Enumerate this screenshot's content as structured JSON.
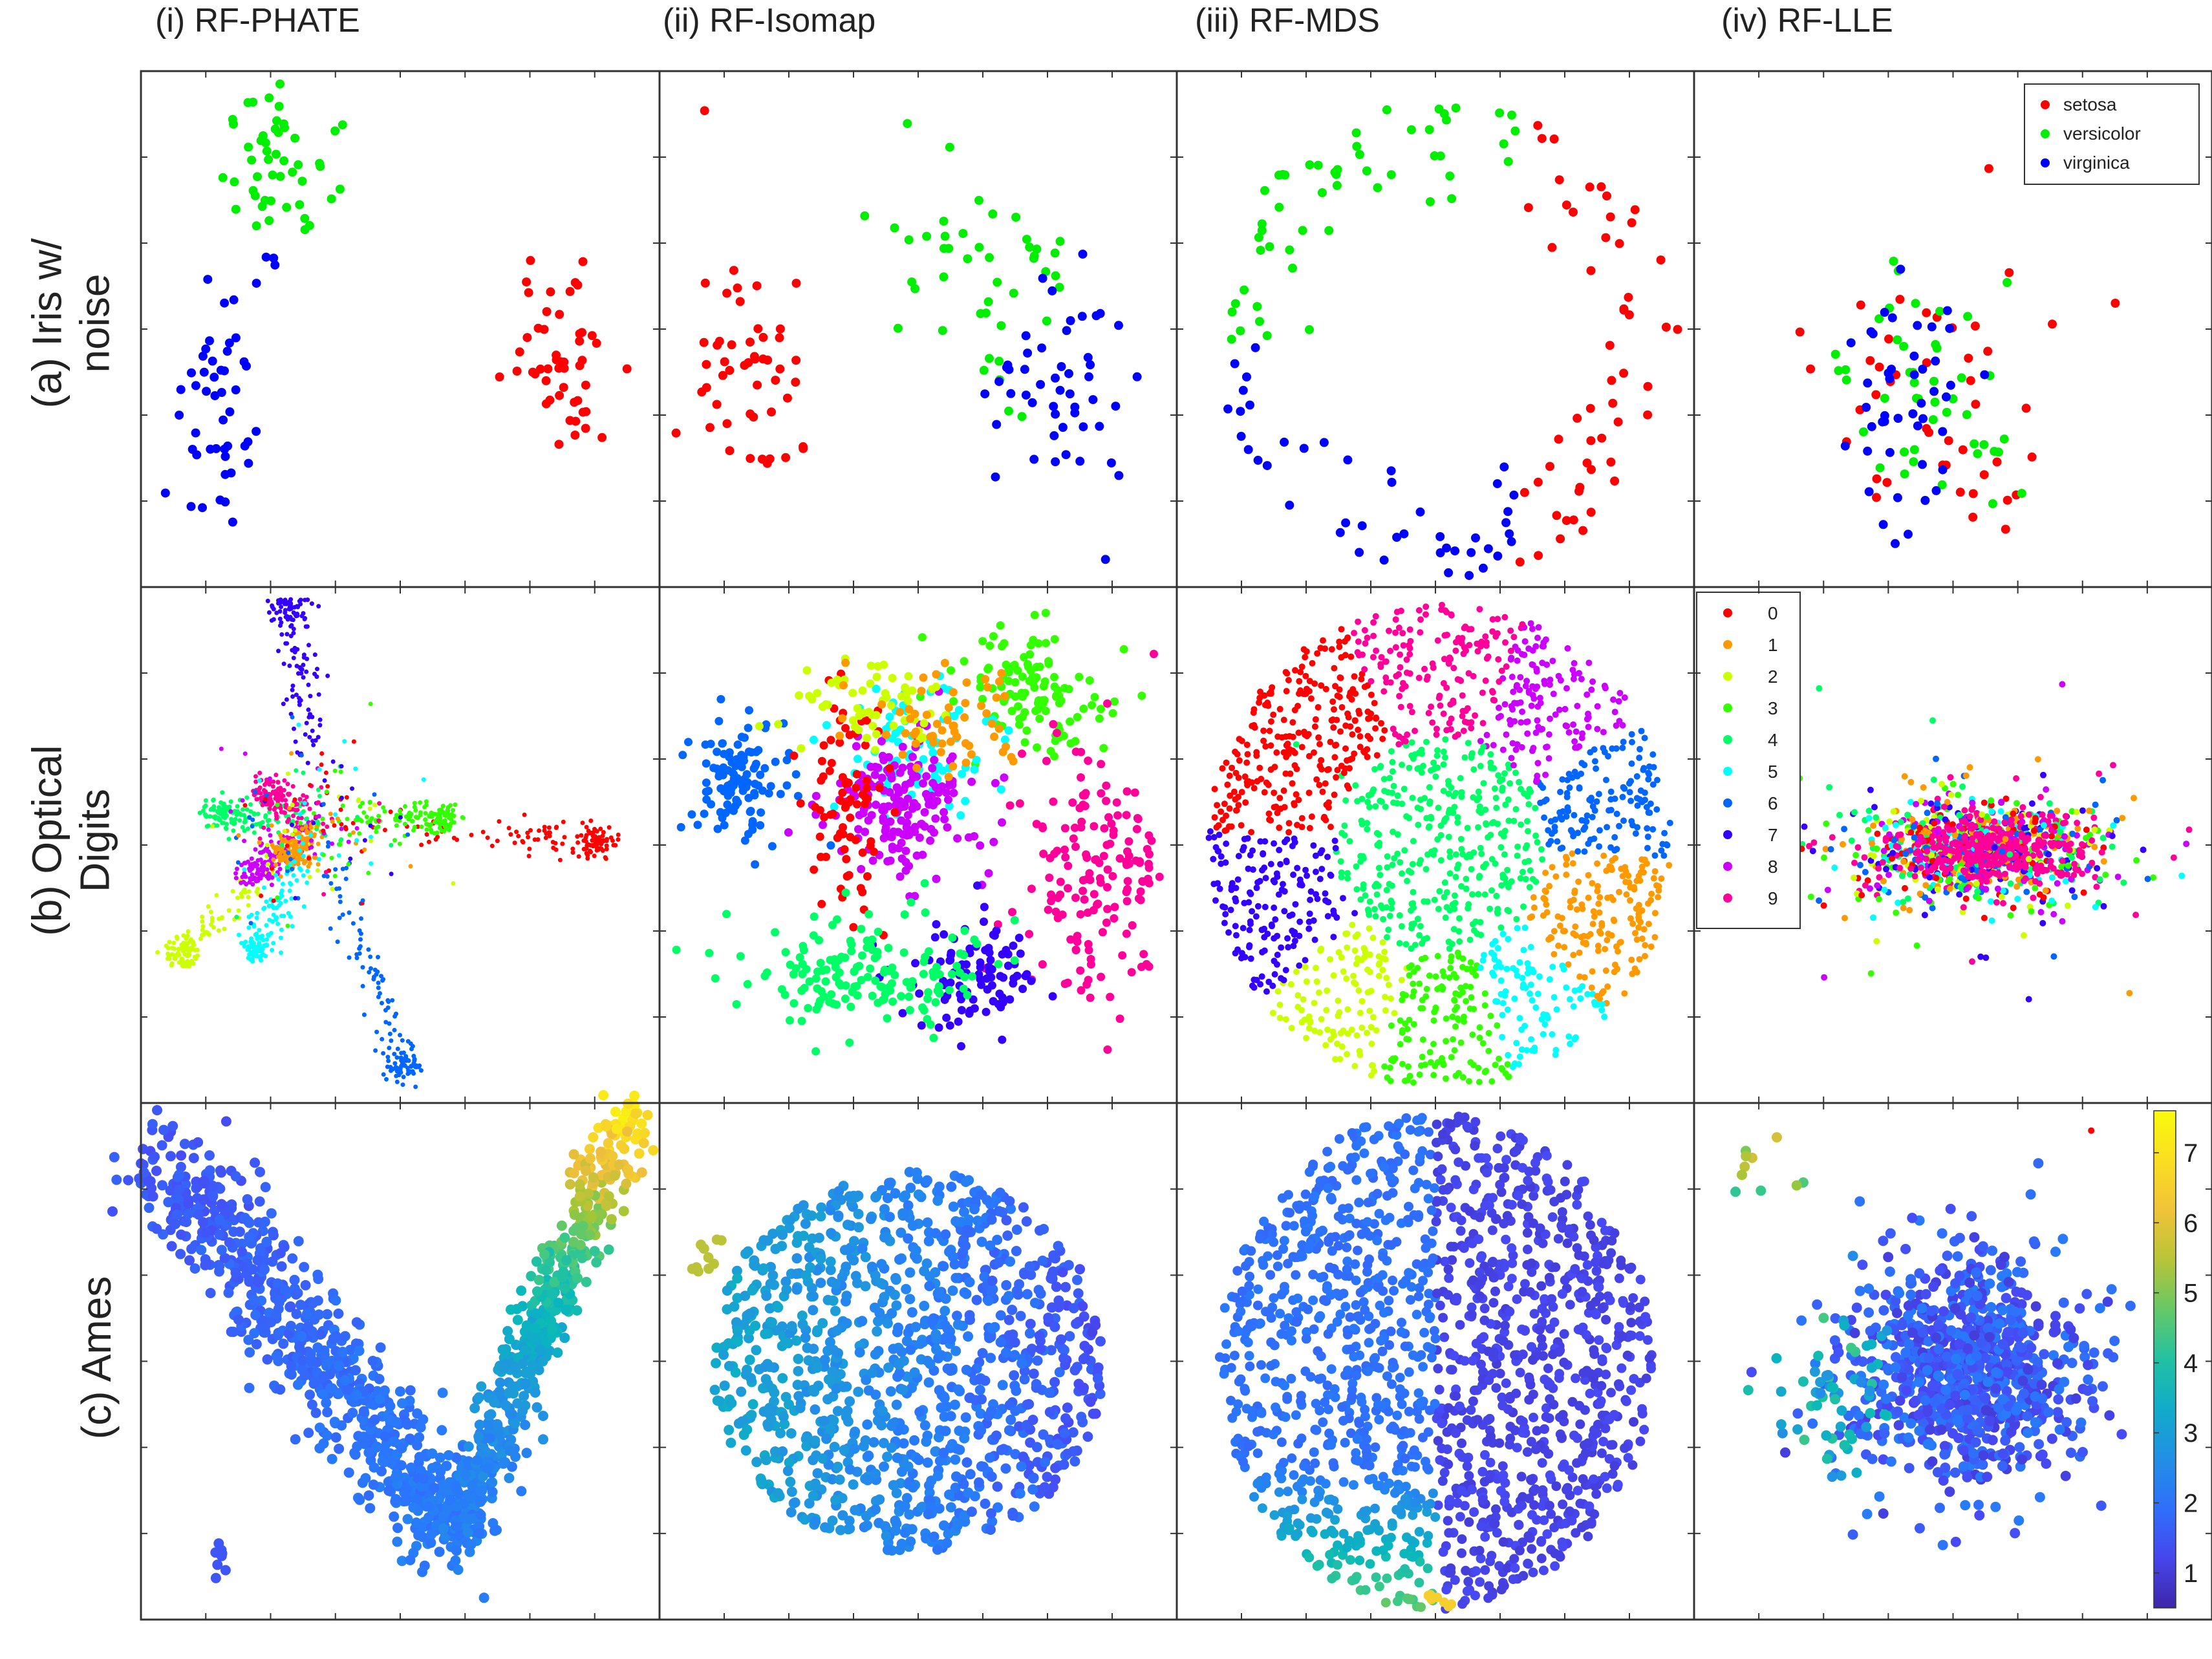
{
  "columns": [
    "(i) RF-PHATE",
    "(ii) RF-Isomap",
    "(iii) RF-MDS",
    "(iv) RF-LLE"
  ],
  "rows": [
    {
      "lines": [
        "(a) Iris w/",
        "noise"
      ]
    },
    {
      "lines": [
        "(b) Optical",
        "Digits"
      ]
    },
    {
      "lines": [
        "(c) Ames"
      ]
    }
  ],
  "chart_data": [
    {
      "type": "scatter",
      "dataset": "(a) Iris w/ noise",
      "legend": {
        "placement": "top-right",
        "panel": "(iv) RF-LLE"
      },
      "series": [
        {
          "name": "setosa",
          "color": "#ff0000"
        },
        {
          "name": "versicolor",
          "color": "#00ee00"
        },
        {
          "name": "virginica",
          "color": "#0000ff"
        }
      ],
      "grid": false
    },
    {
      "type": "scatter",
      "dataset": "(b) Optical Digits",
      "legend": {
        "placement": "top-left",
        "panel": "(iv) RF-LLE"
      },
      "series": [
        {
          "name": "0",
          "color": "#ff0000"
        },
        {
          "name": "1",
          "color": "#ff9900"
        },
        {
          "name": "2",
          "color": "#ccff00"
        },
        {
          "name": "3",
          "color": "#33ff00"
        },
        {
          "name": "4",
          "color": "#00ff66"
        },
        {
          "name": "5",
          "color": "#00ffff"
        },
        {
          "name": "6",
          "color": "#0066ff"
        },
        {
          "name": "7",
          "color": "#3300ff"
        },
        {
          "name": "8",
          "color": "#cc00ff"
        },
        {
          "name": "9",
          "color": "#ff0099"
        }
      ],
      "grid": false
    },
    {
      "type": "scatter",
      "dataset": "(c) Ames",
      "colorbar": {
        "ticks": [
          1,
          2,
          3,
          4,
          5,
          6,
          7
        ],
        "range": [
          0.5,
          7.6
        ],
        "colormap": "parula",
        "panel": "(iv) RF-LLE"
      },
      "grid": false
    }
  ]
}
